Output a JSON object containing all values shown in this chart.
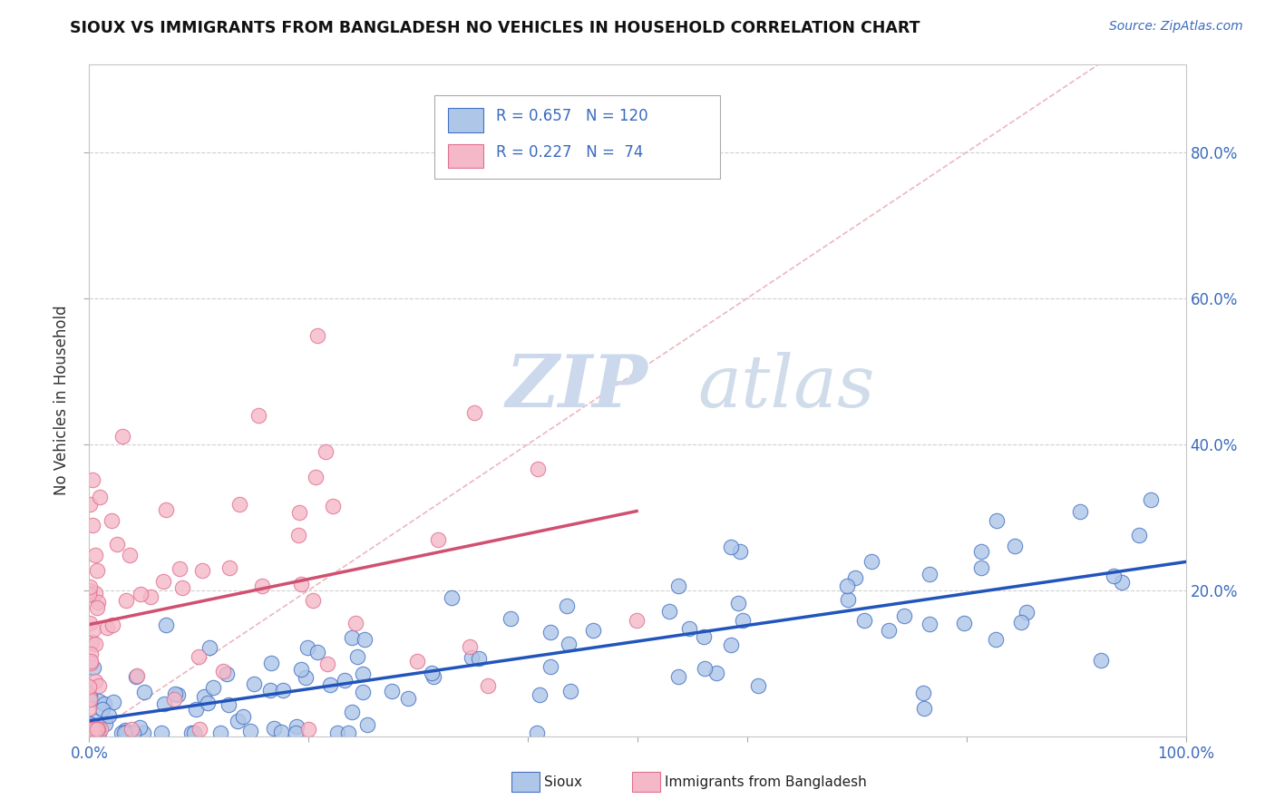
{
  "title": "SIOUX VS IMMIGRANTS FROM BANGLADESH NO VEHICLES IN HOUSEHOLD CORRELATION CHART",
  "source_text": "Source: ZipAtlas.com",
  "ylabel": "No Vehicles in Household",
  "watermark_zip": "ZIP",
  "watermark_atlas": "atlas",
  "legend_label1": "Sioux",
  "legend_label2": "Immigrants from Bangladesh",
  "R1": 0.657,
  "N1": 120,
  "R2": 0.227,
  "N2": 74,
  "color_sioux_fill": "#aec6e8",
  "color_sioux_edge": "#4472c4",
  "color_bang_fill": "#f4b8c8",
  "color_bang_edge": "#e07090",
  "color_sioux_line": "#2255bb",
  "color_bang_line": "#d05070",
  "color_diag": "#e8b0b8",
  "background_color": "#ffffff",
  "xlim": [
    0,
    1.0
  ],
  "ylim": [
    0,
    0.92
  ],
  "right_yticks": [
    0.2,
    0.4,
    0.6,
    0.8
  ],
  "right_yticklabels": [
    "20.0%",
    "40.0%",
    "60.0%",
    "80.0%"
  ]
}
